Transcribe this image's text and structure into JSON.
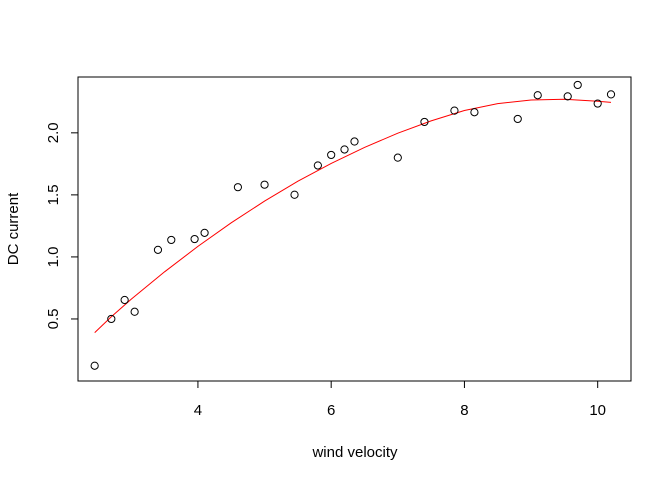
{
  "chart_data": {
    "type": "scatter",
    "title": "",
    "xlabel": "wind velocity",
    "ylabel": "DC current",
    "xlim": [
      2.2,
      10.5
    ],
    "ylim": [
      0.0,
      2.45
    ],
    "x_ticks": [
      4,
      6,
      8,
      10
    ],
    "y_ticks": [
      0.5,
      1.0,
      1.5,
      2.0
    ],
    "x_tick_labels": [
      "4",
      "6",
      "8",
      "10"
    ],
    "y_tick_labels": [
      "0.5",
      "1.0",
      "1.5",
      "2.0"
    ],
    "grid": false,
    "colors": {
      "points": "#000000",
      "fit_line": "#ff0000"
    },
    "series": [
      {
        "kind": "points",
        "x": [
          2.45,
          2.7,
          2.9,
          3.05,
          3.4,
          3.6,
          3.95,
          4.1,
          4.6,
          5.0,
          5.45,
          5.8,
          6.0,
          6.2,
          6.35,
          7.0,
          7.4,
          7.85,
          8.15,
          8.8,
          9.1,
          9.55,
          9.7,
          10.0,
          10.2
        ],
        "y": [
          0.123,
          0.5,
          0.653,
          0.558,
          1.057,
          1.137,
          1.144,
          1.194,
          1.562,
          1.582,
          1.501,
          1.737,
          1.822,
          1.866,
          1.93,
          1.8,
          2.088,
          2.179,
          2.166,
          2.112,
          2.303,
          2.294,
          2.386,
          2.236,
          2.31
        ]
      },
      {
        "kind": "line",
        "x": [
          2.45,
          2.7,
          3.0,
          3.5,
          4.0,
          4.5,
          5.0,
          5.5,
          6.0,
          6.5,
          7.0,
          7.5,
          8.0,
          8.5,
          9.0,
          9.5,
          10.0,
          10.2
        ],
        "y": [
          0.39,
          0.517,
          0.66,
          0.88,
          1.085,
          1.275,
          1.45,
          1.61,
          1.754,
          1.883,
          1.997,
          2.096,
          2.18,
          2.236,
          2.265,
          2.27,
          2.255,
          2.245
        ]
      }
    ]
  }
}
